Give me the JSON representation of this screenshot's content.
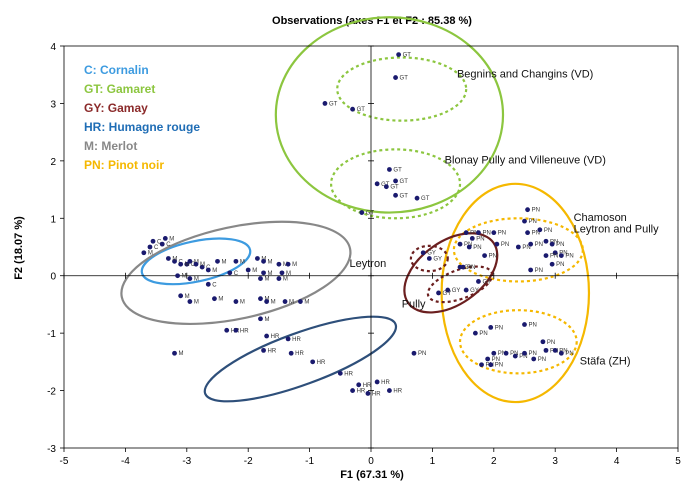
{
  "chart_data": {
    "type": "scatter",
    "title": "Observations (axes F1 et F2 : 85.38 %)",
    "xlabel": "F1 (67.31 %)",
    "ylabel": "F2 (18.07 %)",
    "xlim": [
      -5,
      5
    ],
    "ylim": [
      -3,
      4
    ],
    "xticks": [
      "-5",
      "-4",
      "-3",
      "-2",
      "-1",
      "0",
      "1",
      "2",
      "3",
      "4",
      "5"
    ],
    "yticks": [
      "-3",
      "-2",
      "-1",
      "0",
      "1",
      "2",
      "3",
      "4"
    ],
    "grid": false,
    "point_color": "#1a1a6e",
    "legend": [
      {
        "text": "C: Cornalin",
        "color": "#3d9be0"
      },
      {
        "text": "GT: Gamaret",
        "color": "#8cc63f"
      },
      {
        "text": "GY: Gamay",
        "color": "#8b2a2a"
      },
      {
        "text": "HR: Humagne rouge",
        "color": "#1f6db5"
      },
      {
        "text": "M: Merlot",
        "color": "#888888"
      },
      {
        "text": "PN: Pinot noir",
        "color": "#f5b800"
      }
    ],
    "annotations": [
      {
        "text": "Begnins and Changins (VD)",
        "x": 1.4,
        "y": 3.45
      },
      {
        "text": "Blonay  Pully and Villeneuve (VD)",
        "x": 1.2,
        "y": 1.95
      },
      {
        "text": "Chamoson",
        "x": 3.3,
        "y": 0.95
      },
      {
        "text": "Leytron and Pully",
        "x": 3.3,
        "y": 0.75
      },
      {
        "text": "Leytron",
        "x": -0.35,
        "y": 0.15
      },
      {
        "text": "Pully",
        "x": 0.5,
        "y": -0.55
      },
      {
        "text": "Stäfa (ZH)",
        "x": 3.4,
        "y": -1.55
      }
    ],
    "ellipses": [
      {
        "cx": 0.3,
        "cy": 2.8,
        "rx": 1.85,
        "ry": 1.7,
        "color": "#8cc63f",
        "dash": false
      },
      {
        "cx": 0.5,
        "cy": 3.25,
        "rx": 1.05,
        "ry": 0.55,
        "color": "#8cc63f",
        "dash": true
      },
      {
        "cx": 0.4,
        "cy": 1.6,
        "rx": 1.05,
        "ry": 0.6,
        "color": "#8cc63f",
        "dash": true
      },
      {
        "cx": 2.35,
        "cy": -0.3,
        "rx": 1.2,
        "ry": 1.9,
        "color": "#f5b800",
        "dash": false
      },
      {
        "cx": 2.4,
        "cy": 0.45,
        "rx": 1.05,
        "ry": 0.55,
        "color": "#f5b800",
        "dash": true
      },
      {
        "cx": 2.4,
        "cy": -1.15,
        "rx": 0.95,
        "ry": 0.55,
        "color": "#f5b800",
        "dash": true
      },
      {
        "cx": 1.3,
        "cy": 0.05,
        "rx": 0.85,
        "ry": 0.55,
        "color": "#6b1f1f",
        "dash": false,
        "rot": -35
      },
      {
        "cx": 0.95,
        "cy": 0.3,
        "rx": 0.3,
        "ry": 0.22,
        "color": "#6b1f1f",
        "dash": true
      },
      {
        "cx": 1.45,
        "cy": -0.15,
        "rx": 0.55,
        "ry": 0.25,
        "color": "#6b1f1f",
        "dash": true,
        "rot": -20
      },
      {
        "cx": -2.85,
        "cy": 0.25,
        "rx": 0.9,
        "ry": 0.35,
        "color": "#3d9be0",
        "dash": false,
        "rot": -12
      },
      {
        "cx": -2.2,
        "cy": 0.05,
        "rx": 1.9,
        "ry": 0.8,
        "color": "#888888",
        "dash": false,
        "rot": -12
      },
      {
        "cx": -1.15,
        "cy": -1.45,
        "rx": 1.65,
        "ry": 0.45,
        "color": "#2e4f7a",
        "dash": false,
        "rot": -20
      }
    ],
    "points": [
      {
        "label": "GT",
        "x": 0.45,
        "y": 3.85
      },
      {
        "label": "GT",
        "x": 0.4,
        "y": 3.45
      },
      {
        "label": "GT",
        "x": -0.75,
        "y": 3.0
      },
      {
        "label": "GT",
        "x": -0.3,
        "y": 2.9
      },
      {
        "label": "GT",
        "x": 0.3,
        "y": 1.85
      },
      {
        "label": "GT",
        "x": 0.4,
        "y": 1.65
      },
      {
        "label": "GT",
        "x": 0.1,
        "y": 1.6
      },
      {
        "label": "GT",
        "x": 0.25,
        "y": 1.55
      },
      {
        "label": "GT",
        "x": 0.4,
        "y": 1.4
      },
      {
        "label": "GT",
        "x": 0.75,
        "y": 1.35
      },
      {
        "label": "GT",
        "x": -0.15,
        "y": 1.1
      },
      {
        "label": "GY",
        "x": 0.85,
        "y": 0.4
      },
      {
        "label": "GY",
        "x": 0.95,
        "y": 0.3
      },
      {
        "label": "GY",
        "x": 1.45,
        "y": 0.15
      },
      {
        "label": "GY",
        "x": 1.75,
        "y": -0.1
      },
      {
        "label": "GY",
        "x": 1.55,
        "y": -0.25
      },
      {
        "label": "GY",
        "x": 1.25,
        "y": -0.25
      },
      {
        "label": "GY",
        "x": 1.1,
        "y": -0.3
      },
      {
        "label": "PN",
        "x": 1.55,
        "y": 0.75
      },
      {
        "label": "PN",
        "x": 1.65,
        "y": 0.65
      },
      {
        "label": "PN",
        "x": 1.75,
        "y": 0.75
      },
      {
        "label": "PN",
        "x": 1.45,
        "y": 0.55
      },
      {
        "label": "PN",
        "x": 1.6,
        "y": 0.5
      },
      {
        "label": "PN",
        "x": 2.0,
        "y": 0.75
      },
      {
        "label": "PN",
        "x": 2.05,
        "y": 0.55
      },
      {
        "label": "PN",
        "x": 2.4,
        "y": 0.5
      },
      {
        "label": "PN",
        "x": 2.55,
        "y": 0.75
      },
      {
        "label": "PN",
        "x": 2.6,
        "y": 0.55
      },
      {
        "label": "PN",
        "x": 2.75,
        "y": 0.8
      },
      {
        "label": "PN",
        "x": 2.85,
        "y": 0.6
      },
      {
        "label": "PN",
        "x": 2.95,
        "y": 0.55
      },
      {
        "label": "PN",
        "x": 3.0,
        "y": 0.4
      },
      {
        "label": "PN",
        "x": 3.1,
        "y": 0.35
      },
      {
        "label": "PN",
        "x": 2.95,
        "y": 0.2
      },
      {
        "label": "PN",
        "x": 2.5,
        "y": 0.95
      },
      {
        "label": "PN",
        "x": 2.55,
        "y": 1.15
      },
      {
        "label": "PN",
        "x": 2.6,
        "y": 0.1
      },
      {
        "label": "PN",
        "x": 2.85,
        "y": 0.35
      },
      {
        "label": "PN",
        "x": 1.85,
        "y": 0.35
      },
      {
        "label": "PN",
        "x": 1.5,
        "y": 0.15
      },
      {
        "label": "PN",
        "x": 1.95,
        "y": -0.9
      },
      {
        "label": "PN",
        "x": 2.5,
        "y": -0.85
      },
      {
        "label": "PN",
        "x": 1.7,
        "y": -1.0
      },
      {
        "label": "PN",
        "x": 2.0,
        "y": -1.35
      },
      {
        "label": "PN",
        "x": 2.2,
        "y": -1.35
      },
      {
        "label": "PN",
        "x": 2.35,
        "y": -1.4
      },
      {
        "label": "PN",
        "x": 2.5,
        "y": -1.35
      },
      {
        "label": "PN",
        "x": 2.65,
        "y": -1.45
      },
      {
        "label": "PN",
        "x": 2.8,
        "y": -1.15
      },
      {
        "label": "PN",
        "x": 2.85,
        "y": -1.3
      },
      {
        "label": "PN",
        "x": 3.0,
        "y": -1.3
      },
      {
        "label": "PN",
        "x": 3.1,
        "y": -1.35
      },
      {
        "label": "PN",
        "x": 1.9,
        "y": -1.45
      },
      {
        "label": "PN",
        "x": 1.8,
        "y": -1.55
      },
      {
        "label": "PN",
        "x": 1.95,
        "y": -1.55
      },
      {
        "label": "PN",
        "x": 0.7,
        "y": -1.35
      },
      {
        "label": "C",
        "x": -3.55,
        "y": 0.6
      },
      {
        "label": "C",
        "x": -3.4,
        "y": 0.55
      },
      {
        "label": "C",
        "x": -3.6,
        "y": 0.5
      },
      {
        "label": "C",
        "x": -3.2,
        "y": 0.25
      },
      {
        "label": "C",
        "x": -3.0,
        "y": 0.2
      },
      {
        "label": "C",
        "x": -2.75,
        "y": 0.15
      },
      {
        "label": "C",
        "x": -2.3,
        "y": 0.05
      },
      {
        "label": "C",
        "x": -2.65,
        "y": -0.15
      },
      {
        "label": "M",
        "x": -3.35,
        "y": 0.65
      },
      {
        "label": "M",
        "x": -3.7,
        "y": 0.4
      },
      {
        "label": "M",
        "x": -3.3,
        "y": 0.3
      },
      {
        "label": "M",
        "x": -3.1,
        "y": 0.2
      },
      {
        "label": "M",
        "x": -2.95,
        "y": 0.25
      },
      {
        "label": "M",
        "x": -2.85,
        "y": 0.2
      },
      {
        "label": "M",
        "x": -2.65,
        "y": 0.1
      },
      {
        "label": "M",
        "x": -2.5,
        "y": 0.25
      },
      {
        "label": "M",
        "x": -2.2,
        "y": 0.25
      },
      {
        "label": "M",
        "x": -1.85,
        "y": 0.3
      },
      {
        "label": "M",
        "x": -1.75,
        "y": 0.25
      },
      {
        "label": "M",
        "x": -1.5,
        "y": 0.2
      },
      {
        "label": "M",
        "x": -1.35,
        "y": 0.2
      },
      {
        "label": "M",
        "x": -2.0,
        "y": 0.1
      },
      {
        "label": "M",
        "x": -1.75,
        "y": 0.05
      },
      {
        "label": "M",
        "x": -1.45,
        "y": 0.05
      },
      {
        "label": "M",
        "x": -3.15,
        "y": 0.0
      },
      {
        "label": "M",
        "x": -2.95,
        "y": -0.05
      },
      {
        "label": "M",
        "x": -1.8,
        "y": -0.05
      },
      {
        "label": "M",
        "x": -1.5,
        "y": -0.05
      },
      {
        "label": "M",
        "x": -3.1,
        "y": -0.35
      },
      {
        "label": "M",
        "x": -2.95,
        "y": -0.45
      },
      {
        "label": "M",
        "x": -2.55,
        "y": -0.4
      },
      {
        "label": "M",
        "x": -2.2,
        "y": -0.45
      },
      {
        "label": "M",
        "x": -1.8,
        "y": -0.4
      },
      {
        "label": "M",
        "x": -1.7,
        "y": -0.45
      },
      {
        "label": "M",
        "x": -1.4,
        "y": -0.45
      },
      {
        "label": "M",
        "x": -1.15,
        "y": -0.45
      },
      {
        "label": "M",
        "x": -1.8,
        "y": -0.75
      },
      {
        "label": "M",
        "x": -3.2,
        "y": -1.35
      },
      {
        "label": "HR",
        "x": -2.35,
        "y": -0.95
      },
      {
        "label": "HR",
        "x": -2.2,
        "y": -0.95
      },
      {
        "label": "HR",
        "x": -1.7,
        "y": -1.05
      },
      {
        "label": "HR",
        "x": -1.35,
        "y": -1.1
      },
      {
        "label": "HR",
        "x": -1.75,
        "y": -1.3
      },
      {
        "label": "HR",
        "x": -1.3,
        "y": -1.35
      },
      {
        "label": "HR",
        "x": -0.95,
        "y": -1.5
      },
      {
        "label": "HR",
        "x": -0.5,
        "y": -1.7
      },
      {
        "label": "HR",
        "x": -0.3,
        "y": -2.0
      },
      {
        "label": "HR",
        "x": -0.2,
        "y": -1.9
      },
      {
        "label": "HR",
        "x": -0.05,
        "y": -2.05
      },
      {
        "label": "HR",
        "x": 0.1,
        "y": -1.85
      },
      {
        "label": "HR",
        "x": 0.3,
        "y": -2.0
      }
    ]
  }
}
